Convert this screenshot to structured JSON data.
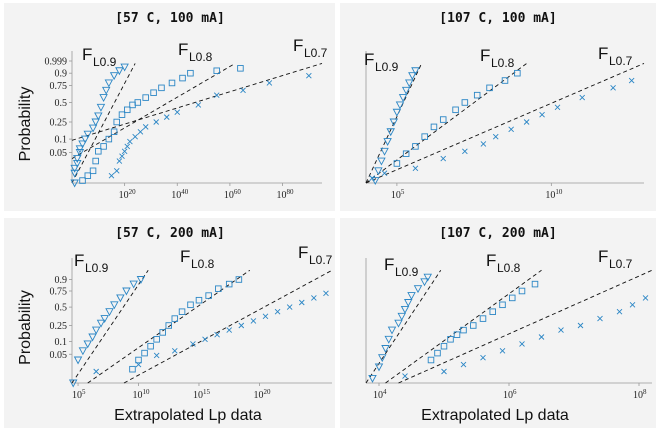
{
  "figure": {
    "ylabel": "Probability",
    "xlabel": "Extrapolated Lp data",
    "fit_labels": [
      {
        "main": "F",
        "sub": "L0.9"
      },
      {
        "main": "F",
        "sub": "L0.8"
      },
      {
        "main": "F",
        "sub": "L0.7"
      }
    ]
  },
  "colors": {
    "markers": "#2b86c5",
    "fit_lines": "#111111",
    "panel_bg": "#f3f3f3"
  },
  "chart_data": [
    {
      "type": "scatter",
      "title": "[57 C, 100 mA]",
      "x_scale": "log",
      "xlim_exp": [
        0,
        95
      ],
      "x_ticks": [
        {
          "exp": 20,
          "label": "20"
        },
        {
          "exp": 40,
          "label": "40"
        },
        {
          "exp": 60,
          "label": "60"
        },
        {
          "exp": 80,
          "label": "80"
        }
      ],
      "y_ticks": [
        "0.999",
        "0.9",
        "0.75",
        "0.5",
        "0.25",
        "0.1",
        "0.05"
      ],
      "series": [
        {
          "marker": "triangle",
          "pts": [
            [
              1,
              0.0
            ],
            [
              1,
              0.08
            ],
            [
              1,
              0.12
            ],
            [
              2,
              0.16
            ],
            [
              2,
              0.2
            ],
            [
              3,
              0.25
            ],
            [
              3,
              0.28
            ],
            [
              4,
              0.32
            ],
            [
              5,
              0.36
            ],
            [
              6,
              0.4
            ],
            [
              8,
              0.45
            ],
            [
              9,
              0.5
            ],
            [
              10,
              0.55
            ],
            [
              11,
              0.62
            ],
            [
              12,
              0.7
            ],
            [
              13,
              0.76
            ],
            [
              14,
              0.82
            ],
            [
              16,
              0.88
            ],
            [
              18,
              0.92
            ],
            [
              20,
              0.95
            ]
          ]
        },
        {
          "marker": "square",
          "pts": [
            [
              4,
              0.02
            ],
            [
              6,
              0.06
            ],
            [
              8,
              0.1
            ],
            [
              9,
              0.18
            ],
            [
              10,
              0.26
            ],
            [
              12,
              0.3
            ],
            [
              14,
              0.36
            ],
            [
              16,
              0.42
            ],
            [
              17,
              0.5
            ],
            [
              19,
              0.56
            ],
            [
              21,
              0.6
            ],
            [
              23,
              0.64
            ],
            [
              25,
              0.66
            ],
            [
              28,
              0.7
            ],
            [
              31,
              0.74
            ],
            [
              34,
              0.78
            ],
            [
              38,
              0.82
            ],
            [
              42,
              0.86
            ],
            [
              45,
              0.9
            ],
            [
              55,
              0.92
            ],
            [
              64,
              0.94
            ]
          ]
        },
        {
          "marker": "x",
          "pts": [
            [
              15,
              0.06
            ],
            [
              17,
              0.1
            ],
            [
              18,
              0.18
            ],
            [
              19,
              0.22
            ],
            [
              20,
              0.26
            ],
            [
              21,
              0.3
            ],
            [
              22,
              0.34
            ],
            [
              24,
              0.38
            ],
            [
              26,
              0.42
            ],
            [
              28,
              0.46
            ],
            [
              32,
              0.5
            ],
            [
              36,
              0.54
            ],
            [
              40,
              0.58
            ],
            [
              48,
              0.64
            ],
            [
              55,
              0.72
            ],
            [
              65,
              0.76
            ],
            [
              75,
              0.82
            ],
            [
              90,
              0.88
            ]
          ]
        }
      ],
      "fit_lines": [
        {
          "label": "FL0.9",
          "from": [
            0,
            0.0
          ],
          "to": [
            24,
            0.98
          ]
        },
        {
          "label": "FL0.8",
          "from": [
            0,
            0.2
          ],
          "to": [
            62,
            0.98
          ]
        },
        {
          "label": "FL0.7",
          "from": [
            0,
            0.35
          ],
          "to": [
            95,
            0.98
          ]
        }
      ]
    },
    {
      "type": "scatter",
      "title": "[107 C, 100 mA]",
      "x_scale": "log",
      "xlim_exp": [
        4,
        13
      ],
      "x_ticks": [
        {
          "exp": 5,
          "label": "5"
        },
        {
          "exp": 10,
          "label": "10"
        }
      ],
      "y_ticks": [],
      "series": [
        {
          "marker": "triangle",
          "pts": [
            [
              4.3,
              0.02
            ],
            [
              4.4,
              0.1
            ],
            [
              4.5,
              0.18
            ],
            [
              4.6,
              0.26
            ],
            [
              4.7,
              0.34
            ],
            [
              4.8,
              0.42
            ],
            [
              4.9,
              0.5
            ],
            [
              5.0,
              0.58
            ],
            [
              5.1,
              0.64
            ],
            [
              5.2,
              0.7
            ],
            [
              5.3,
              0.76
            ],
            [
              5.4,
              0.82
            ],
            [
              5.5,
              0.88
            ],
            [
              5.6,
              0.92
            ]
          ]
        },
        {
          "marker": "square",
          "pts": [
            [
              5.0,
              0.16
            ],
            [
              5.3,
              0.24
            ],
            [
              5.6,
              0.3
            ],
            [
              5.9,
              0.38
            ],
            [
              6.2,
              0.46
            ],
            [
              6.5,
              0.52
            ],
            [
              6.9,
              0.6
            ],
            [
              7.2,
              0.66
            ],
            [
              7.6,
              0.72
            ],
            [
              8.0,
              0.78
            ],
            [
              8.5,
              0.84
            ],
            [
              8.9,
              0.9
            ]
          ]
        },
        {
          "marker": "x",
          "pts": [
            [
              4.2,
              0.04
            ],
            [
              4.6,
              0.08
            ],
            [
              5.6,
              0.12
            ],
            [
              6.5,
              0.2
            ],
            [
              7.2,
              0.26
            ],
            [
              7.8,
              0.32
            ],
            [
              8.2,
              0.38
            ],
            [
              8.7,
              0.44
            ],
            [
              9.2,
              0.5
            ],
            [
              9.7,
              0.56
            ],
            [
              10.2,
              0.62
            ],
            [
              11.0,
              0.7
            ],
            [
              12.0,
              0.78
            ],
            [
              12.6,
              0.84
            ]
          ]
        }
      ],
      "fit_lines": [
        {
          "label": "FL0.9",
          "from": [
            4,
            0.0
          ],
          "to": [
            5.8,
            0.98
          ]
        },
        {
          "label": "FL0.8",
          "from": [
            4,
            0.0
          ],
          "to": [
            9.2,
            0.98
          ]
        },
        {
          "label": "FL0.7",
          "from": [
            4,
            0.0
          ],
          "to": [
            13,
            0.98
          ]
        }
      ]
    },
    {
      "type": "scatter",
      "title": "[57 C, 200 mA]",
      "x_scale": "log",
      "xlim_exp": [
        4.5,
        26
      ],
      "x_ticks": [
        {
          "exp": 5,
          "label": "5"
        },
        {
          "exp": 10,
          "label": "10"
        },
        {
          "exp": 15,
          "label": "15"
        },
        {
          "exp": 20,
          "label": "20"
        }
      ],
      "y_ticks": [
        "0.9",
        "0.75",
        "0.5",
        "0.25",
        "0.1",
        "0.05"
      ],
      "series": [
        {
          "marker": "triangle",
          "pts": [
            [
              4.6,
              0.0
            ],
            [
              5.0,
              0.2
            ],
            [
              5.4,
              0.28
            ],
            [
              5.8,
              0.34
            ],
            [
              6.2,
              0.4
            ],
            [
              6.5,
              0.46
            ],
            [
              6.9,
              0.52
            ],
            [
              7.2,
              0.56
            ],
            [
              7.6,
              0.62
            ],
            [
              8.0,
              0.68
            ],
            [
              8.5,
              0.74
            ],
            [
              9.0,
              0.8
            ],
            [
              9.6,
              0.86
            ],
            [
              10.2,
              0.9
            ]
          ]
        },
        {
          "marker": "square",
          "pts": [
            [
              9.5,
              0.12
            ],
            [
              10.0,
              0.2
            ],
            [
              10.5,
              0.26
            ],
            [
              11.0,
              0.32
            ],
            [
              11.5,
              0.38
            ],
            [
              12.0,
              0.44
            ],
            [
              12.5,
              0.5
            ],
            [
              13.0,
              0.56
            ],
            [
              13.6,
              0.62
            ],
            [
              14.3,
              0.68
            ],
            [
              15.0,
              0.72
            ],
            [
              15.8,
              0.76
            ],
            [
              16.6,
              0.82
            ],
            [
              17.5,
              0.86
            ],
            [
              18.3,
              0.9
            ]
          ]
        },
        {
          "marker": "x",
          "pts": [
            [
              6.5,
              0.1
            ],
            [
              10.0,
              0.16
            ],
            [
              11.5,
              0.24
            ],
            [
              13.0,
              0.28
            ],
            [
              14.5,
              0.34
            ],
            [
              15.5,
              0.38
            ],
            [
              16.5,
              0.42
            ],
            [
              17.5,
              0.46
            ],
            [
              18.5,
              0.5
            ],
            [
              19.5,
              0.54
            ],
            [
              20.5,
              0.58
            ],
            [
              21.5,
              0.62
            ],
            [
              22.5,
              0.66
            ],
            [
              23.5,
              0.7
            ],
            [
              24.5,
              0.74
            ],
            [
              25.5,
              0.78
            ]
          ]
        }
      ],
      "fit_lines": [
        {
          "label": "FL0.9",
          "from": [
            4.5,
            0.0
          ],
          "to": [
            10.8,
            0.98
          ]
        },
        {
          "label": "FL0.8",
          "from": [
            5.8,
            0.0
          ],
          "to": [
            19.2,
            0.98
          ]
        },
        {
          "label": "FL0.7",
          "from": [
            8.8,
            0.0
          ],
          "to": [
            26,
            0.98
          ]
        }
      ]
    },
    {
      "type": "scatter",
      "title": "[107 C, 200 mA]",
      "x_scale": "log",
      "xlim_exp": [
        3.8,
        8.2
      ],
      "x_ticks": [
        {
          "exp": 4,
          "label": "4"
        },
        {
          "exp": 6,
          "label": "6"
        },
        {
          "exp": 8,
          "label": "8"
        }
      ],
      "y_ticks": [],
      "series": [
        {
          "marker": "triangle",
          "pts": [
            [
              3.9,
              0.04
            ],
            [
              4.0,
              0.14
            ],
            [
              4.05,
              0.22
            ],
            [
              4.1,
              0.3
            ],
            [
              4.15,
              0.38
            ],
            [
              4.2,
              0.46
            ],
            [
              4.3,
              0.52
            ],
            [
              4.35,
              0.58
            ],
            [
              4.4,
              0.64
            ],
            [
              4.45,
              0.7
            ],
            [
              4.5,
              0.76
            ],
            [
              4.6,
              0.82
            ],
            [
              4.7,
              0.88
            ],
            [
              4.75,
              0.92
            ]
          ]
        },
        {
          "marker": "square",
          "pts": [
            [
              4.8,
              0.2
            ],
            [
              4.9,
              0.26
            ],
            [
              5.0,
              0.32
            ],
            [
              5.1,
              0.38
            ],
            [
              5.2,
              0.42
            ],
            [
              5.3,
              0.46
            ],
            [
              5.45,
              0.5
            ],
            [
              5.6,
              0.56
            ],
            [
              5.75,
              0.62
            ],
            [
              5.9,
              0.68
            ],
            [
              6.05,
              0.74
            ],
            [
              6.2,
              0.8
            ],
            [
              6.4,
              0.86
            ]
          ]
        },
        {
          "marker": "x",
          "pts": [
            [
              4.4,
              0.06
            ],
            [
              5.0,
              0.1
            ],
            [
              5.3,
              0.16
            ],
            [
              5.6,
              0.22
            ],
            [
              5.9,
              0.28
            ],
            [
              6.2,
              0.34
            ],
            [
              6.5,
              0.4
            ],
            [
              6.8,
              0.46
            ],
            [
              7.1,
              0.5
            ],
            [
              7.4,
              0.56
            ],
            [
              7.7,
              0.62
            ],
            [
              7.9,
              0.68
            ],
            [
              8.1,
              0.74
            ]
          ]
        }
      ],
      "fit_lines": [
        {
          "label": "FL0.9",
          "from": [
            3.8,
            0.0
          ],
          "to": [
            4.95,
            0.98
          ]
        },
        {
          "label": "FL0.8",
          "from": [
            4.1,
            0.0
          ],
          "to": [
            6.5,
            0.98
          ]
        },
        {
          "label": "FL0.7",
          "from": [
            4.3,
            0.0
          ],
          "to": [
            8.2,
            0.98
          ]
        }
      ]
    }
  ]
}
